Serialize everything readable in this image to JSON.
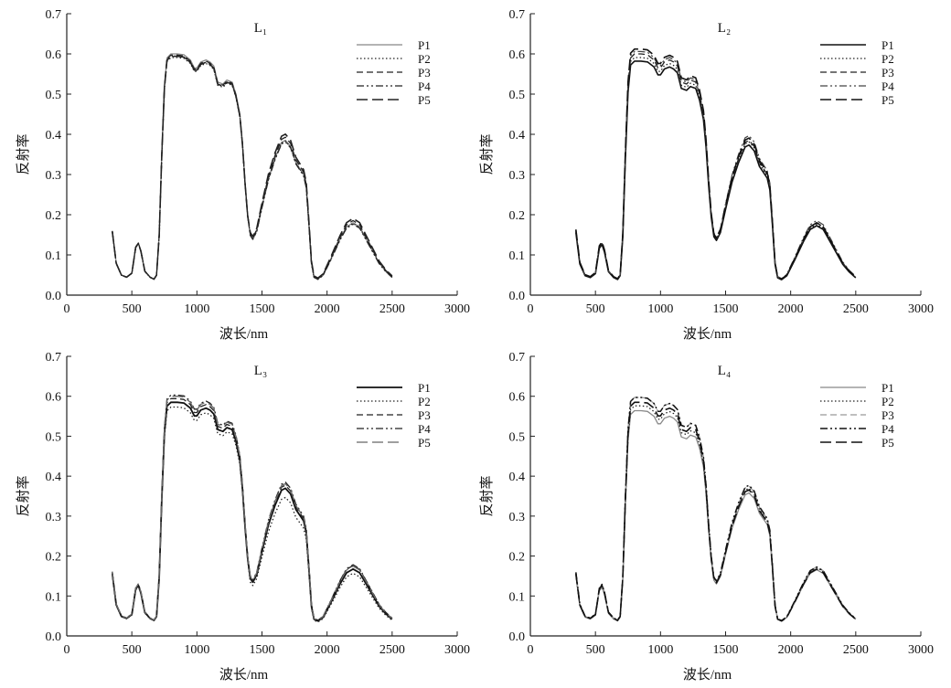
{
  "chart_data": [
    {
      "type": "line",
      "title": "L₁",
      "xlabel": "波长/nm",
      "ylabel": "反射率",
      "xlim": [
        0,
        3000
      ],
      "ylim": [
        0,
        0.7
      ],
      "xticks": [
        "0",
        "500",
        "1000",
        "1500",
        "2000",
        "2500",
        "3000"
      ],
      "yticks": [
        "0.0",
        "0.1",
        "0.2",
        "0.3",
        "0.4",
        "0.5",
        "0.6",
        "0.7"
      ],
      "legend_position": "top-right",
      "series": [
        {
          "name": "P1",
          "style": "solid",
          "color": "#888888",
          "width": 1.3,
          "scale": [
            1.0,
            1.0,
            1.0
          ]
        },
        {
          "name": "P2",
          "style": "dotted",
          "color": "#222222",
          "width": 1.3,
          "scale": [
            0.985,
            0.995,
            0.99
          ]
        },
        {
          "name": "P3",
          "style": "dashed",
          "color": "#222222",
          "width": 1.3,
          "scale": [
            0.995,
            1.02,
            1.03
          ]
        },
        {
          "name": "P4",
          "style": "dashdotdot",
          "color": "#222222",
          "width": 1.3,
          "scale": [
            0.99,
            0.99,
            0.98
          ]
        },
        {
          "name": "P5",
          "style": "longdash",
          "color": "#222222",
          "width": 1.6,
          "scale": [
            0.99,
            1.04,
            1.06
          ]
        }
      ]
    },
    {
      "type": "line",
      "title": "L₂",
      "xlabel": "波长/nm",
      "ylabel": "反射率",
      "xlim": [
        0,
        3000
      ],
      "ylim": [
        0,
        0.7
      ],
      "xticks": [
        "0",
        "500",
        "1000",
        "1500",
        "2000",
        "2500",
        "3000"
      ],
      "yticks": [
        "0.0",
        "0.1",
        "0.2",
        "0.3",
        "0.4",
        "0.5",
        "0.6",
        "0.7"
      ],
      "legend_position": "top-right",
      "series": [
        {
          "name": "P1",
          "style": "solid",
          "color": "#111111",
          "width": 1.6,
          "scale": [
            0.97,
            0.97,
            0.96
          ]
        },
        {
          "name": "P2",
          "style": "dotted",
          "color": "#222222",
          "width": 1.3,
          "scale": [
            0.985,
            0.99,
            0.98
          ]
        },
        {
          "name": "P3",
          "style": "dashed",
          "color": "#222222",
          "width": 1.3,
          "scale": [
            1.0,
            1.0,
            1.0
          ]
        },
        {
          "name": "P4",
          "style": "dashdotdot",
          "color": "#444444",
          "width": 1.3,
          "scale": [
            1.01,
            1.03,
            1.03
          ]
        },
        {
          "name": "P5",
          "style": "longdash",
          "color": "#111111",
          "width": 1.6,
          "scale": [
            1.02,
            1.015,
            1.0
          ]
        }
      ]
    },
    {
      "type": "line",
      "title": "L₃",
      "xlabel": "波长/nm",
      "ylabel": "反射率",
      "xlim": [
        0,
        3000
      ],
      "ylim": [
        0,
        0.7
      ],
      "xticks": [
        "0",
        "500",
        "1000",
        "1500",
        "2000",
        "2500",
        "3000"
      ],
      "yticks": [
        "0.0",
        "0.1",
        "0.2",
        "0.3",
        "0.4",
        "0.5",
        "0.6",
        "0.7"
      ],
      "legend_position": "top-right",
      "series": [
        {
          "name": "P1",
          "style": "solid",
          "color": "#111111",
          "width": 1.8,
          "scale": [
            0.975,
            0.96,
            0.93
          ]
        },
        {
          "name": "P2",
          "style": "dotted",
          "color": "#222222",
          "width": 1.3,
          "scale": [
            0.955,
            0.9,
            0.87
          ]
        },
        {
          "name": "P3",
          "style": "dashed",
          "color": "#222222",
          "width": 1.3,
          "scale": [
            0.99,
            0.98,
            0.98
          ]
        },
        {
          "name": "P4",
          "style": "dashdotdot",
          "color": "#222222",
          "width": 1.3,
          "scale": [
            1.005,
            1.0,
            0.99
          ]
        },
        {
          "name": "P5",
          "style": "longdash",
          "color": "#666666",
          "width": 1.3,
          "scale": [
            1.0,
            0.99,
            0.97
          ]
        }
      ]
    },
    {
      "type": "line",
      "title": "L₄",
      "xlabel": "波长/nm",
      "ylabel": "反射率",
      "xlim": [
        0,
        3000
      ],
      "ylim": [
        0,
        0.7
      ],
      "xticks": [
        "0",
        "500",
        "1000",
        "1500",
        "2000",
        "2500",
        "3000"
      ],
      "yticks": [
        "0.0",
        "0.1",
        "0.2",
        "0.3",
        "0.4",
        "0.5",
        "0.6",
        "0.7"
      ],
      "legend_position": "top-right",
      "series": [
        {
          "name": "P1",
          "style": "solid",
          "color": "#888888",
          "width": 1.3,
          "scale": [
            0.94,
            0.93,
            0.92
          ]
        },
        {
          "name": "P2",
          "style": "dotted",
          "color": "#222222",
          "width": 1.3,
          "scale": [
            0.96,
            0.96,
            0.95
          ]
        },
        {
          "name": "P3",
          "style": "dashed",
          "color": "#999999",
          "width": 1.3,
          "scale": [
            0.995,
            0.975,
            0.96
          ]
        },
        {
          "name": "P4",
          "style": "dashdotdot",
          "color": "#111111",
          "width": 1.5,
          "scale": [
            0.995,
            0.98,
            0.96
          ]
        },
        {
          "name": "P5",
          "style": "longdash",
          "color": "#111111",
          "width": 1.6,
          "scale": [
            0.975,
            0.95,
            0.93
          ]
        }
      ]
    }
  ],
  "base_spectrum": [
    [
      350,
      0.16
    ],
    [
      380,
      0.08
    ],
    [
      420,
      0.05
    ],
    [
      460,
      0.045
    ],
    [
      500,
      0.055
    ],
    [
      530,
      0.12
    ],
    [
      550,
      0.13
    ],
    [
      570,
      0.11
    ],
    [
      600,
      0.06
    ],
    [
      640,
      0.045
    ],
    [
      670,
      0.04
    ],
    [
      690,
      0.05
    ],
    [
      710,
      0.15
    ],
    [
      730,
      0.35
    ],
    [
      750,
      0.52
    ],
    [
      770,
      0.59
    ],
    [
      800,
      0.6
    ],
    [
      850,
      0.6
    ],
    [
      900,
      0.598
    ],
    [
      950,
      0.585
    ],
    [
      980,
      0.565
    ],
    [
      1000,
      0.565
    ],
    [
      1030,
      0.58
    ],
    [
      1070,
      0.585
    ],
    [
      1100,
      0.58
    ],
    [
      1130,
      0.57
    ],
    [
      1160,
      0.53
    ],
    [
      1200,
      0.525
    ],
    [
      1230,
      0.535
    ],
    [
      1270,
      0.53
    ],
    [
      1300,
      0.5
    ],
    [
      1330,
      0.45
    ],
    [
      1350,
      0.38
    ],
    [
      1370,
      0.28
    ],
    [
      1390,
      0.2
    ],
    [
      1410,
      0.15
    ],
    [
      1430,
      0.14
    ],
    [
      1460,
      0.16
    ],
    [
      1500,
      0.22
    ],
    [
      1550,
      0.29
    ],
    [
      1600,
      0.34
    ],
    [
      1650,
      0.38
    ],
    [
      1680,
      0.385
    ],
    [
      1720,
      0.37
    ],
    [
      1760,
      0.33
    ],
    [
      1800,
      0.31
    ],
    [
      1820,
      0.3
    ],
    [
      1840,
      0.27
    ],
    [
      1860,
      0.18
    ],
    [
      1880,
      0.08
    ],
    [
      1900,
      0.045
    ],
    [
      1930,
      0.04
    ],
    [
      1970,
      0.05
    ],
    [
      2030,
      0.09
    ],
    [
      2100,
      0.14
    ],
    [
      2150,
      0.17
    ],
    [
      2200,
      0.18
    ],
    [
      2250,
      0.17
    ],
    [
      2300,
      0.14
    ],
    [
      2350,
      0.11
    ],
    [
      2400,
      0.08
    ],
    [
      2450,
      0.06
    ],
    [
      2500,
      0.045
    ]
  ]
}
